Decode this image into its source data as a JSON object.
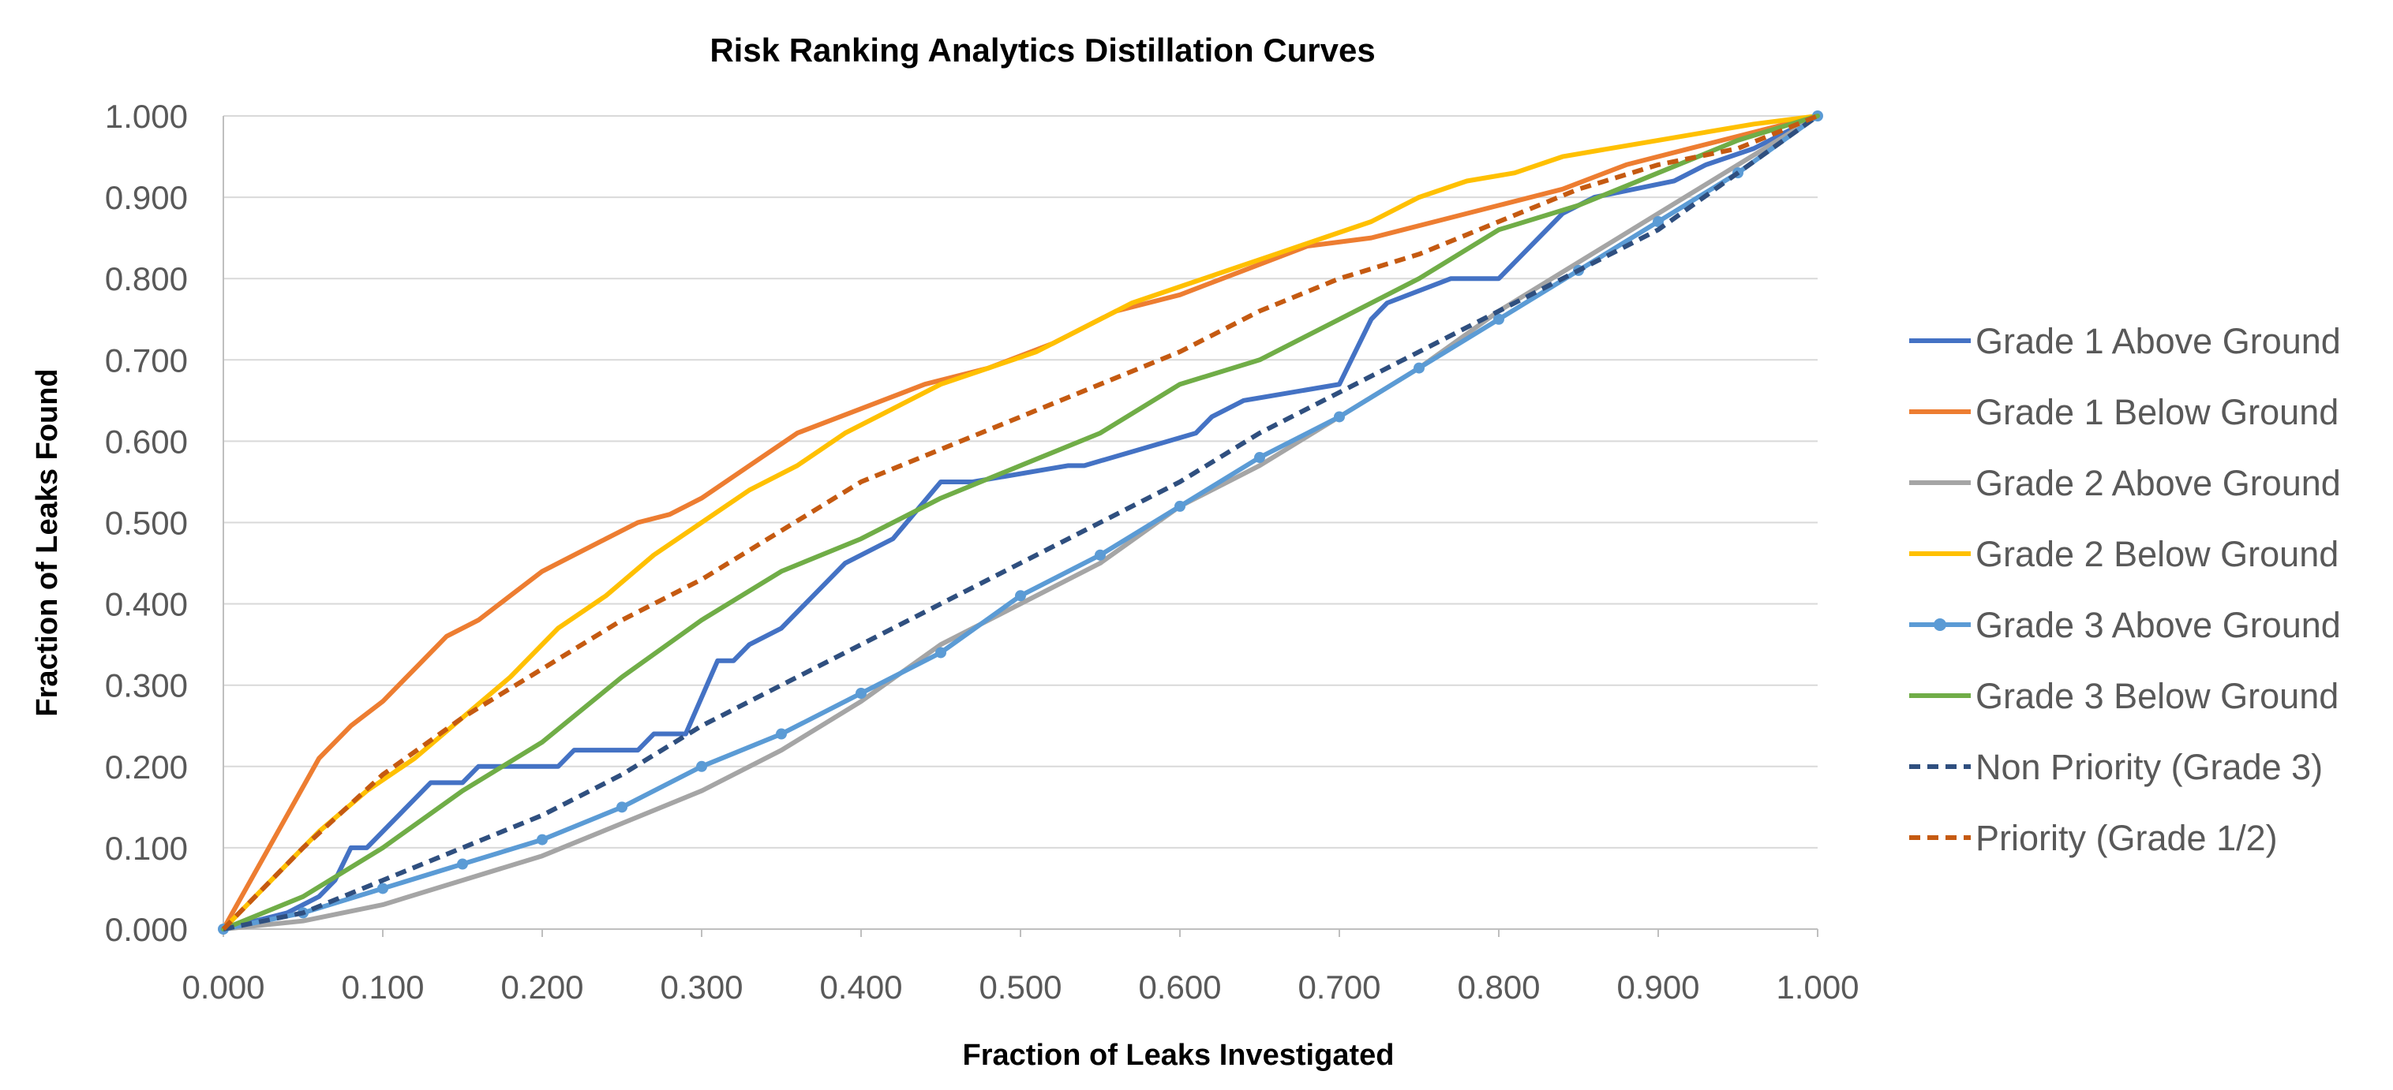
{
  "chart_data": {
    "type": "line",
    "title": "Risk Ranking Analytics Distillation Curves",
    "xlabel": "Fraction of Leaks Investigated",
    "ylabel": "Fraction of Leaks Found",
    "xlim": [
      0,
      1
    ],
    "ylim": [
      0,
      1
    ],
    "grid": true,
    "legend_position": "right",
    "x_ticks": [
      "0.000",
      "0.100",
      "0.200",
      "0.300",
      "0.400",
      "0.500",
      "0.600",
      "0.700",
      "0.800",
      "0.900",
      "1.000"
    ],
    "y_ticks": [
      "0.000",
      "0.100",
      "0.200",
      "0.300",
      "0.400",
      "0.500",
      "0.600",
      "0.700",
      "0.800",
      "0.900",
      "1.000"
    ],
    "series": [
      {
        "name": "Grade 1 Above Ground",
        "color": "#4472c4",
        "style": "step",
        "dash": false,
        "markers": false,
        "x": [
          0,
          0.04,
          0.05,
          0.06,
          0.07,
          0.08,
          0.09,
          0.1,
          0.12,
          0.13,
          0.15,
          0.16,
          0.21,
          0.22,
          0.23,
          0.26,
          0.27,
          0.29,
          0.31,
          0.32,
          0.33,
          0.35,
          0.37,
          0.39,
          0.42,
          0.45,
          0.47,
          0.53,
          0.54,
          0.61,
          0.62,
          0.64,
          0.7,
          0.72,
          0.73,
          0.77,
          0.8,
          0.81,
          0.83,
          0.84,
          0.86,
          0.91,
          0.93,
          0.96,
          0.98,
          1.0
        ],
        "y": [
          0,
          0.02,
          0.03,
          0.04,
          0.06,
          0.1,
          0.1,
          0.12,
          0.16,
          0.18,
          0.18,
          0.2,
          0.2,
          0.22,
          0.22,
          0.22,
          0.24,
          0.24,
          0.33,
          0.33,
          0.35,
          0.37,
          0.41,
          0.45,
          0.48,
          0.55,
          0.55,
          0.57,
          0.57,
          0.61,
          0.63,
          0.65,
          0.67,
          0.75,
          0.77,
          0.8,
          0.8,
          0.82,
          0.86,
          0.88,
          0.9,
          0.92,
          0.94,
          0.96,
          0.98,
          1.0
        ]
      },
      {
        "name": "Grade 1 Below Ground",
        "color": "#ed7d31",
        "style": "line",
        "dash": false,
        "markers": false,
        "x": [
          0,
          0.02,
          0.04,
          0.06,
          0.08,
          0.1,
          0.12,
          0.14,
          0.16,
          0.18,
          0.2,
          0.22,
          0.24,
          0.26,
          0.28,
          0.3,
          0.33,
          0.36,
          0.4,
          0.44,
          0.48,
          0.52,
          0.56,
          0.6,
          0.64,
          0.68,
          0.72,
          0.76,
          0.8,
          0.84,
          0.88,
          0.92,
          0.96,
          1.0
        ],
        "y": [
          0,
          0.07,
          0.14,
          0.21,
          0.25,
          0.28,
          0.32,
          0.36,
          0.38,
          0.41,
          0.44,
          0.46,
          0.48,
          0.5,
          0.51,
          0.53,
          0.57,
          0.61,
          0.64,
          0.67,
          0.69,
          0.72,
          0.76,
          0.78,
          0.81,
          0.84,
          0.85,
          0.87,
          0.89,
          0.91,
          0.94,
          0.96,
          0.98,
          1.0
        ]
      },
      {
        "name": "Grade 2 Above Ground",
        "color": "#a5a5a5",
        "style": "line",
        "dash": false,
        "markers": false,
        "x": [
          0,
          0.05,
          0.1,
          0.15,
          0.2,
          0.25,
          0.3,
          0.35,
          0.4,
          0.45,
          0.5,
          0.55,
          0.6,
          0.65,
          0.7,
          0.75,
          0.8,
          0.85,
          0.9,
          0.95,
          1.0
        ],
        "y": [
          0,
          0.01,
          0.03,
          0.06,
          0.09,
          0.13,
          0.17,
          0.22,
          0.28,
          0.35,
          0.4,
          0.45,
          0.52,
          0.57,
          0.63,
          0.69,
          0.76,
          0.82,
          0.88,
          0.94,
          1.0
        ]
      },
      {
        "name": "Grade 2 Below Ground",
        "color": "#ffc000",
        "style": "line",
        "dash": false,
        "markers": false,
        "x": [
          0,
          0.03,
          0.06,
          0.09,
          0.12,
          0.15,
          0.18,
          0.21,
          0.24,
          0.27,
          0.3,
          0.33,
          0.36,
          0.39,
          0.42,
          0.45,
          0.48,
          0.51,
          0.54,
          0.57,
          0.6,
          0.63,
          0.66,
          0.69,
          0.72,
          0.75,
          0.78,
          0.81,
          0.84,
          0.87,
          0.9,
          0.93,
          0.96,
          1.0
        ],
        "y": [
          0,
          0.06,
          0.12,
          0.17,
          0.21,
          0.26,
          0.31,
          0.37,
          0.41,
          0.46,
          0.5,
          0.54,
          0.57,
          0.61,
          0.64,
          0.67,
          0.69,
          0.71,
          0.74,
          0.77,
          0.79,
          0.81,
          0.83,
          0.85,
          0.87,
          0.9,
          0.92,
          0.93,
          0.95,
          0.96,
          0.97,
          0.98,
          0.99,
          1.0
        ]
      },
      {
        "name": "Grade 3 Above Ground",
        "color": "#5b9bd5",
        "style": "line",
        "dash": false,
        "markers": true,
        "x": [
          0,
          0.05,
          0.1,
          0.15,
          0.2,
          0.25,
          0.3,
          0.35,
          0.4,
          0.45,
          0.5,
          0.55,
          0.6,
          0.65,
          0.7,
          0.75,
          0.8,
          0.85,
          0.9,
          0.95,
          1.0
        ],
        "y": [
          0,
          0.02,
          0.05,
          0.08,
          0.11,
          0.15,
          0.2,
          0.24,
          0.29,
          0.34,
          0.41,
          0.46,
          0.52,
          0.58,
          0.63,
          0.69,
          0.75,
          0.81,
          0.87,
          0.93,
          1.0
        ]
      },
      {
        "name": "Grade 3 Below Ground",
        "color": "#70ad47",
        "style": "line",
        "dash": false,
        "markers": false,
        "x": [
          0,
          0.05,
          0.1,
          0.15,
          0.2,
          0.25,
          0.3,
          0.35,
          0.4,
          0.45,
          0.5,
          0.55,
          0.6,
          0.65,
          0.7,
          0.75,
          0.8,
          0.85,
          0.9,
          0.95,
          1.0
        ],
        "y": [
          0,
          0.04,
          0.1,
          0.17,
          0.23,
          0.31,
          0.38,
          0.44,
          0.48,
          0.53,
          0.57,
          0.61,
          0.67,
          0.7,
          0.75,
          0.8,
          0.86,
          0.89,
          0.93,
          0.97,
          1.0
        ]
      },
      {
        "name": "Non Priority (Grade 3)",
        "color": "#2f4f7f",
        "style": "line",
        "dash": true,
        "markers": false,
        "x": [
          0,
          0.05,
          0.1,
          0.15,
          0.2,
          0.25,
          0.3,
          0.35,
          0.4,
          0.45,
          0.5,
          0.55,
          0.6,
          0.65,
          0.7,
          0.75,
          0.8,
          0.85,
          0.9,
          0.95,
          1.0
        ],
        "y": [
          0,
          0.02,
          0.06,
          0.1,
          0.14,
          0.19,
          0.25,
          0.3,
          0.35,
          0.4,
          0.45,
          0.5,
          0.55,
          0.61,
          0.66,
          0.71,
          0.76,
          0.81,
          0.86,
          0.93,
          1.0
        ]
      },
      {
        "name": "Priority (Grade 1/2)",
        "color": "#c55a11",
        "style": "line",
        "dash": true,
        "markers": false,
        "x": [
          0,
          0.05,
          0.1,
          0.15,
          0.2,
          0.25,
          0.3,
          0.35,
          0.4,
          0.45,
          0.5,
          0.55,
          0.6,
          0.65,
          0.7,
          0.75,
          0.8,
          0.85,
          0.9,
          0.95,
          1.0
        ],
        "y": [
          0,
          0.1,
          0.19,
          0.26,
          0.32,
          0.38,
          0.43,
          0.49,
          0.55,
          0.59,
          0.63,
          0.67,
          0.71,
          0.76,
          0.8,
          0.83,
          0.87,
          0.91,
          0.94,
          0.96,
          1.0
        ]
      }
    ]
  }
}
